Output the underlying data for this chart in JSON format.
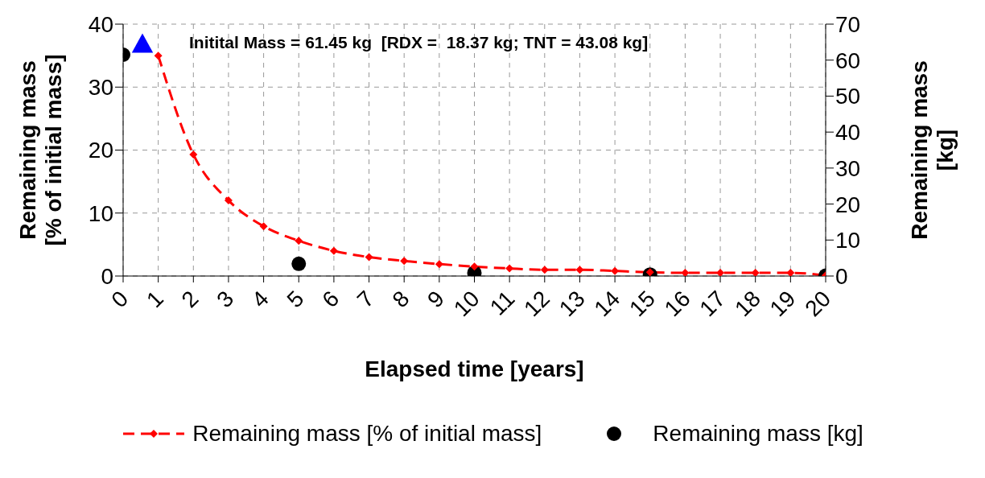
{
  "chart_data": {
    "type": "line",
    "ylabel": "Remaining mass\n[% of initial mass]",
    "y2label": "Remaining mass\n[kg]",
    "xlabel": "Elapsed time [years]",
    "annotations": [
      "Initital Mass = 61.45 kg  [RDX =  18.37 kg; TNT = 43.08 kg]"
    ],
    "xlim": [
      0,
      20
    ],
    "xticks": [
      0,
      1,
      2,
      3,
      4,
      5,
      6,
      7,
      8,
      9,
      10,
      11,
      12,
      13,
      14,
      15,
      16,
      17,
      18,
      19,
      20
    ],
    "ylim": [
      0,
      40
    ],
    "yticks": [
      0,
      10,
      20,
      30,
      40
    ],
    "y2lim": [
      0,
      70
    ],
    "y2ticks": [
      0,
      10,
      20,
      30,
      40,
      50,
      60,
      70
    ],
    "grid": true,
    "legend": "bottom",
    "series": [
      {
        "name": "Remaining mass [% of initial mass]",
        "type": "line",
        "color": "#ff0000",
        "marker": "diamond",
        "line_style": "dashed",
        "x": [
          1,
          2,
          3,
          4,
          5,
          6,
          7,
          8,
          9,
          10,
          11,
          12,
          13,
          14,
          15,
          16,
          17,
          18,
          19,
          20
        ],
        "values": [
          35,
          19.3,
          12,
          7.9,
          5.6,
          4,
          3,
          2.4,
          1.9,
          1.5,
          1.2,
          1,
          1,
          0.8,
          0.6,
          0.5,
          0.5,
          0.5,
          0.5,
          0.1
        ]
      },
      {
        "name": "Remaining mass [kg]",
        "type": "scatter",
        "color": "#000000",
        "marker": "circle",
        "axis": "y2",
        "x": [
          0,
          5,
          10,
          15,
          20
        ],
        "values": [
          61.5,
          3.4,
          0.9,
          0.4,
          0.1
        ]
      },
      {
        "type": "scatter",
        "color": "#0000ff",
        "marker": "triangle",
        "x": [
          0.55
        ],
        "values": [
          37
        ]
      }
    ]
  }
}
